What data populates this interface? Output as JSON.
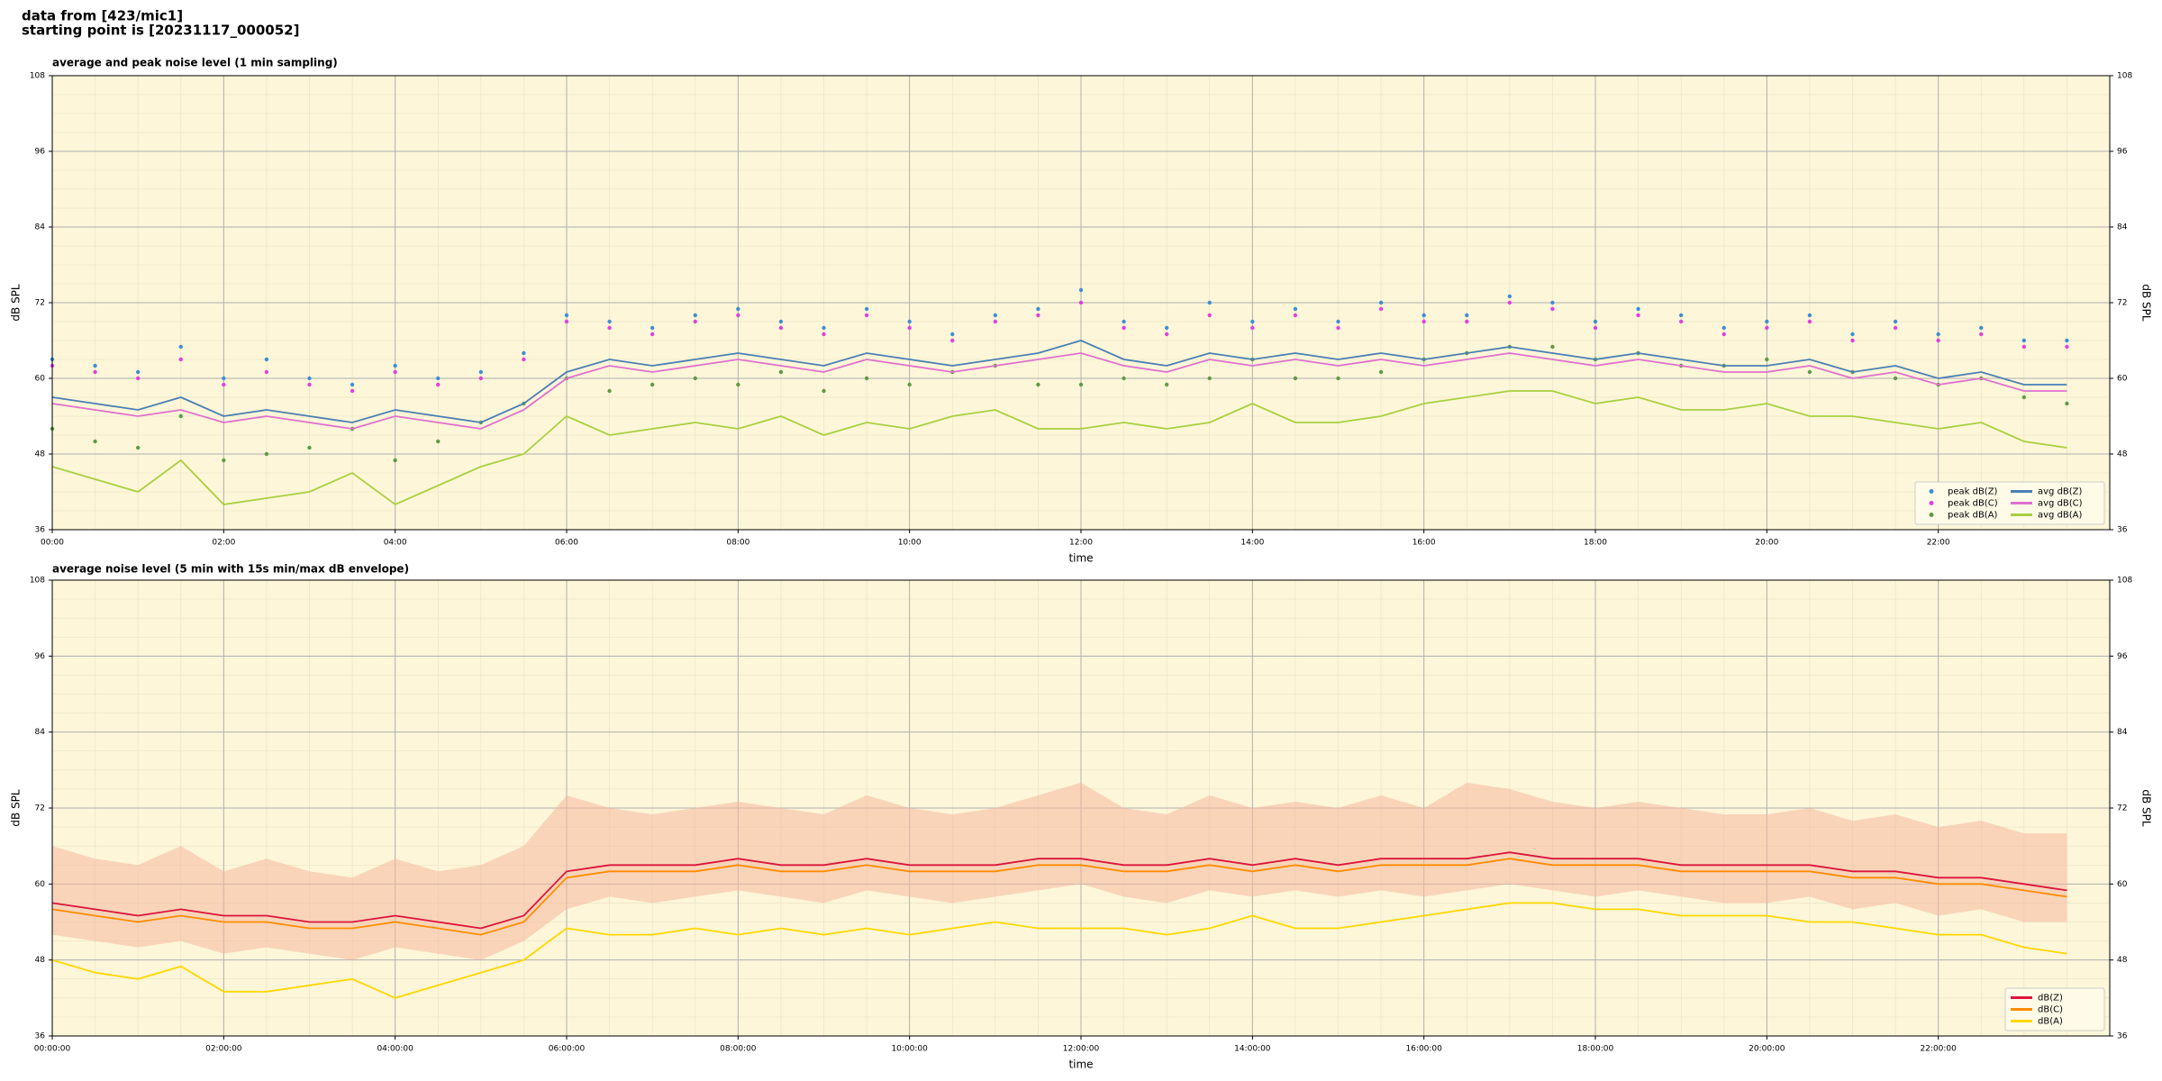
{
  "suptitle": [
    "data from [423/mic1]",
    "starting point is [20231117_000052]"
  ],
  "chart_data": [
    {
      "type": "line",
      "title": "average and peak noise level (1 min sampling)",
      "xlabel": "time",
      "ylabel": "dB SPL",
      "y2label": "dB SPL",
      "background": "#fdf6d8",
      "grid": true,
      "legend": "lower right",
      "legend_columns": 2,
      "xlim": [
        0,
        1440
      ],
      "ylim": [
        36,
        108
      ],
      "yticks": [
        36,
        48,
        60,
        72,
        84,
        96,
        108
      ],
      "xticks": [
        {
          "value": 0,
          "label": "00:00"
        },
        {
          "value": 120,
          "label": "02:00"
        },
        {
          "value": 240,
          "label": "04:00"
        },
        {
          "value": 360,
          "label": "06:00"
        },
        {
          "value": 480,
          "label": "08:00"
        },
        {
          "value": 600,
          "label": "10:00"
        },
        {
          "value": 720,
          "label": "12:00"
        },
        {
          "value": 840,
          "label": "14:00"
        },
        {
          "value": 960,
          "label": "16:00"
        },
        {
          "value": 1080,
          "label": "18:00"
        },
        {
          "value": 1200,
          "label": "20:00"
        },
        {
          "value": 1320,
          "label": "22:00"
        }
      ],
      "x": [
        0,
        30,
        60,
        90,
        120,
        150,
        180,
        210,
        240,
        270,
        300,
        330,
        360,
        390,
        420,
        450,
        480,
        510,
        540,
        570,
        600,
        630,
        660,
        690,
        720,
        750,
        780,
        810,
        840,
        870,
        900,
        930,
        960,
        990,
        1020,
        1050,
        1080,
        1110,
        1140,
        1170,
        1200,
        1230,
        1260,
        1290,
        1320,
        1350,
        1380,
        1410
      ],
      "series": [
        {
          "name": "peak dB(Z)",
          "type": "scatter",
          "color": "#3c8fd6",
          "values": [
            63,
            62,
            61,
            65,
            60,
            63,
            60,
            59,
            62,
            60,
            61,
            64,
            70,
            69,
            68,
            70,
            71,
            69,
            68,
            71,
            69,
            67,
            70,
            71,
            74,
            69,
            68,
            72,
            69,
            71,
            69,
            72,
            70,
            70,
            73,
            72,
            69,
            71,
            70,
            68,
            69,
            70,
            67,
            69,
            67,
            68,
            66,
            66
          ]
        },
        {
          "name": "peak dB(C)",
          "type": "scatter",
          "color": "#e23fe0",
          "values": [
            62,
            61,
            60,
            63,
            59,
            61,
            59,
            58,
            61,
            59,
            60,
            63,
            69,
            68,
            67,
            69,
            70,
            68,
            67,
            70,
            68,
            66,
            69,
            70,
            72,
            68,
            67,
            70,
            68,
            70,
            68,
            71,
            69,
            69,
            72,
            71,
            68,
            70,
            69,
            67,
            68,
            69,
            66,
            68,
            66,
            67,
            65,
            65
          ]
        },
        {
          "name": "peak dB(A)",
          "type": "scatter",
          "color": "#5f9a45",
          "values": [
            52,
            50,
            49,
            54,
            47,
            48,
            49,
            52,
            47,
            50,
            53,
            56,
            60,
            58,
            59,
            60,
            59,
            61,
            58,
            60,
            59,
            61,
            62,
            59,
            59,
            60,
            59,
            60,
            63,
            60,
            60,
            61,
            63,
            64,
            65,
            65,
            63,
            64,
            62,
            62,
            63,
            61,
            61,
            60,
            59,
            60,
            57,
            56
          ]
        },
        {
          "name": "avg dB(Z)",
          "type": "line",
          "color": "#4a7fb5",
          "values": [
            57,
            56,
            55,
            57,
            54,
            55,
            54,
            53,
            55,
            54,
            53,
            56,
            61,
            63,
            62,
            63,
            64,
            63,
            62,
            64,
            63,
            62,
            63,
            64,
            66,
            63,
            62,
            64,
            63,
            64,
            63,
            64,
            63,
            64,
            65,
            64,
            63,
            64,
            63,
            62,
            62,
            63,
            61,
            62,
            60,
            61,
            59,
            59
          ]
        },
        {
          "name": "avg dB(C)",
          "type": "line",
          "color": "#e070d0",
          "values": [
            56,
            55,
            54,
            55,
            53,
            54,
            53,
            52,
            54,
            53,
            52,
            55,
            60,
            62,
            61,
            62,
            63,
            62,
            61,
            63,
            62,
            61,
            62,
            63,
            64,
            62,
            61,
            63,
            62,
            63,
            62,
            63,
            62,
            63,
            64,
            63,
            62,
            63,
            62,
            61,
            61,
            62,
            60,
            61,
            59,
            60,
            58,
            58
          ]
        },
        {
          "name": "avg dB(A)",
          "type": "line",
          "color": "#a8d040",
          "values": [
            46,
            44,
            42,
            47,
            40,
            41,
            42,
            45,
            40,
            43,
            46,
            48,
            54,
            51,
            52,
            53,
            52,
            54,
            51,
            53,
            52,
            54,
            55,
            52,
            52,
            53,
            52,
            53,
            56,
            53,
            53,
            54,
            56,
            57,
            58,
            58,
            56,
            57,
            55,
            55,
            56,
            54,
            54,
            53,
            52,
            53,
            50,
            49
          ]
        }
      ]
    },
    {
      "type": "line",
      "title": "average noise level (5 min with 15s min/max dB envelope)",
      "xlabel": "time",
      "ylabel": "dB SPL",
      "y2label": "dB SPL",
      "background": "#fdf6d8",
      "grid": true,
      "legend": "lower right",
      "legend_columns": 1,
      "xlim": [
        0,
        1440
      ],
      "ylim": [
        36,
        108
      ],
      "yticks": [
        36,
        48,
        60,
        72,
        84,
        96,
        108
      ],
      "xticks": [
        {
          "value": 0,
          "label": "00:00:00"
        },
        {
          "value": 120,
          "label": "02:00:00"
        },
        {
          "value": 240,
          "label": "04:00:00"
        },
        {
          "value": 360,
          "label": "06:00:00"
        },
        {
          "value": 480,
          "label": "08:00:00"
        },
        {
          "value": 600,
          "label": "10:00:00"
        },
        {
          "value": 720,
          "label": "12:00:00"
        },
        {
          "value": 840,
          "label": "14:00:00"
        },
        {
          "value": 960,
          "label": "16:00:00"
        },
        {
          "value": 1080,
          "label": "18:00:00"
        },
        {
          "value": 1200,
          "label": "20:00:00"
        },
        {
          "value": 1320,
          "label": "22:00:00"
        }
      ],
      "x": [
        0,
        30,
        60,
        90,
        120,
        150,
        180,
        210,
        240,
        270,
        300,
        330,
        360,
        390,
        420,
        450,
        480,
        510,
        540,
        570,
        600,
        630,
        660,
        690,
        720,
        750,
        780,
        810,
        840,
        870,
        900,
        930,
        960,
        990,
        1020,
        1050,
        1080,
        1110,
        1140,
        1170,
        1200,
        1230,
        1260,
        1290,
        1320,
        1350,
        1380,
        1410
      ],
      "envelope": {
        "color": "#f6b8a0",
        "upper": [
          66,
          64,
          63,
          66,
          62,
          64,
          62,
          61,
          64,
          62,
          63,
          66,
          74,
          72,
          71,
          72,
          73,
          72,
          71,
          74,
          72,
          71,
          72,
          74,
          76,
          72,
          71,
          74,
          72,
          73,
          72,
          74,
          72,
          76,
          75,
          73,
          72,
          73,
          72,
          71,
          71,
          72,
          70,
          71,
          69,
          70,
          68,
          68
        ],
        "lower": [
          52,
          51,
          50,
          51,
          49,
          50,
          49,
          48,
          50,
          49,
          48,
          51,
          56,
          58,
          57,
          58,
          59,
          58,
          57,
          59,
          58,
          57,
          58,
          59,
          60,
          58,
          57,
          59,
          58,
          59,
          58,
          59,
          58,
          59,
          60,
          59,
          58,
          59,
          58,
          57,
          57,
          58,
          56,
          57,
          55,
          56,
          54,
          54
        ]
      },
      "series": [
        {
          "name": "dB(Z)",
          "type": "line",
          "color": "#dc143c",
          "values": [
            57,
            56,
            55,
            56,
            55,
            55,
            54,
            54,
            55,
            54,
            53,
            55,
            62,
            63,
            63,
            63,
            64,
            63,
            63,
            64,
            63,
            63,
            63,
            64,
            64,
            63,
            63,
            64,
            63,
            64,
            63,
            64,
            64,
            64,
            65,
            64,
            64,
            64,
            63,
            63,
            63,
            63,
            62,
            62,
            61,
            61,
            60,
            59
          ]
        },
        {
          "name": "dB(C)",
          "type": "line",
          "color": "#ff8c00",
          "values": [
            56,
            55,
            54,
            55,
            54,
            54,
            53,
            53,
            54,
            53,
            52,
            54,
            61,
            62,
            62,
            62,
            63,
            62,
            62,
            63,
            62,
            62,
            62,
            63,
            63,
            62,
            62,
            63,
            62,
            63,
            62,
            63,
            63,
            63,
            64,
            63,
            63,
            63,
            62,
            62,
            62,
            62,
            61,
            61,
            60,
            60,
            59,
            58
          ]
        },
        {
          "name": "dB(A)",
          "type": "line",
          "color": "#ffd700",
          "values": [
            48,
            46,
            45,
            47,
            43,
            43,
            44,
            45,
            42,
            44,
            46,
            48,
            53,
            52,
            52,
            53,
            52,
            53,
            52,
            53,
            52,
            53,
            54,
            53,
            53,
            53,
            52,
            53,
            55,
            53,
            53,
            54,
            55,
            56,
            57,
            57,
            56,
            56,
            55,
            55,
            55,
            54,
            54,
            53,
            52,
            52,
            50,
            49
          ]
        }
      ]
    }
  ]
}
